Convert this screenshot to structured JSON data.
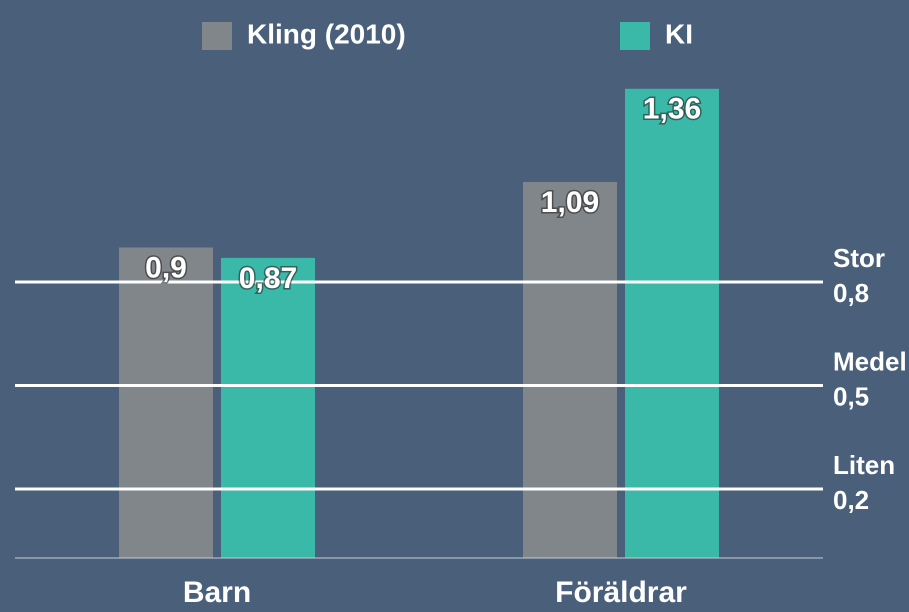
{
  "chart_data": {
    "type": "bar",
    "categories": [
      "Barn",
      "Föräldrar"
    ],
    "series": [
      {
        "name": "Kling (2010)",
        "color": "#80868a",
        "values": [
          0.9,
          1.09
        ],
        "value_labels": [
          "0,9",
          "1,09"
        ]
      },
      {
        "name": "KI",
        "color": "#3ab8a8",
        "values": [
          0.87,
          1.36
        ],
        "value_labels": [
          "0,87",
          "1,36"
        ]
      }
    ],
    "ylim": [
      0,
      1.4
    ],
    "reference_lines": [
      {
        "value": 0.8,
        "name": "Stor",
        "label": "0,8"
      },
      {
        "value": 0.5,
        "name": "Medel",
        "label": "0,5"
      },
      {
        "value": 0.2,
        "name": "Liten",
        "label": "0,2"
      }
    ]
  }
}
